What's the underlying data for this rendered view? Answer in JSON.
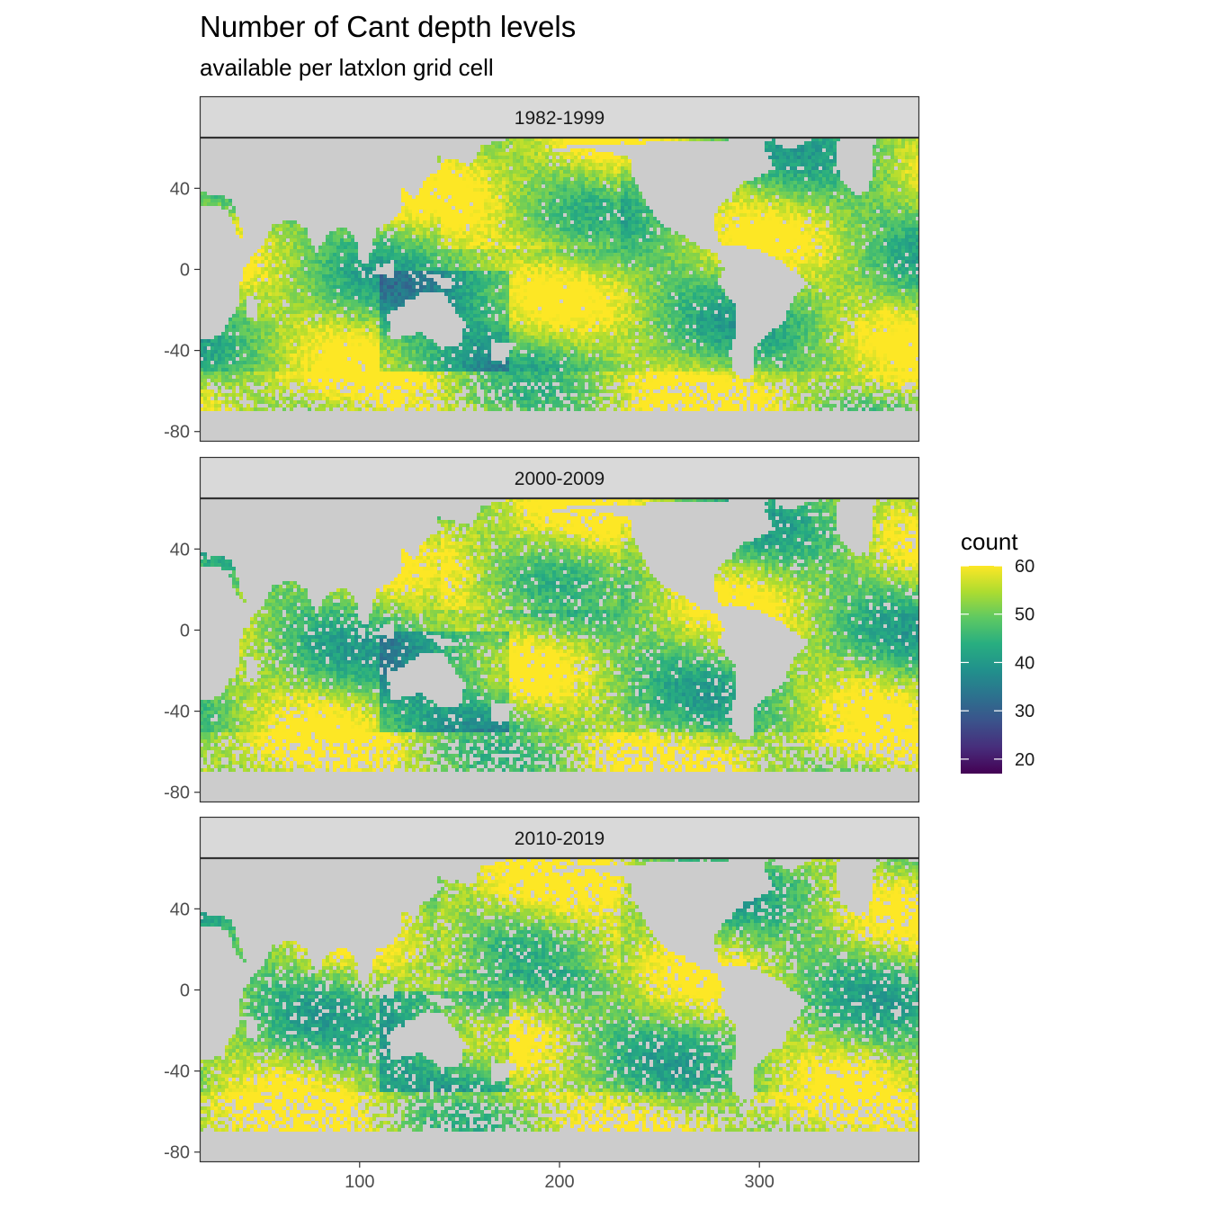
{
  "chart_data": {
    "type": "heatmap",
    "title": "Number of Cant depth levels",
    "subtitle": "available per latxlon grid cell",
    "xlabel": "",
    "ylabel": "",
    "xlim": [
      20,
      380
    ],
    "ylim": [
      -85,
      65
    ],
    "x_ticks": [
      100,
      200,
      300
    ],
    "y_ticks": [
      40,
      0,
      -40,
      -80
    ],
    "panels": [
      {
        "label": "1982-1999"
      },
      {
        "label": "2000-2009"
      },
      {
        "label": "2010-2019"
      }
    ],
    "legend": {
      "title": "count",
      "position": "right",
      "range": [
        17,
        60
      ],
      "ticks": [
        60,
        50,
        40,
        30,
        20
      ],
      "colormap": "viridis"
    },
    "colors": {
      "land": "#cccccc",
      "strip_background": "#d9d9d9",
      "panel_border": "#333333",
      "missing": "#ffffff"
    }
  }
}
